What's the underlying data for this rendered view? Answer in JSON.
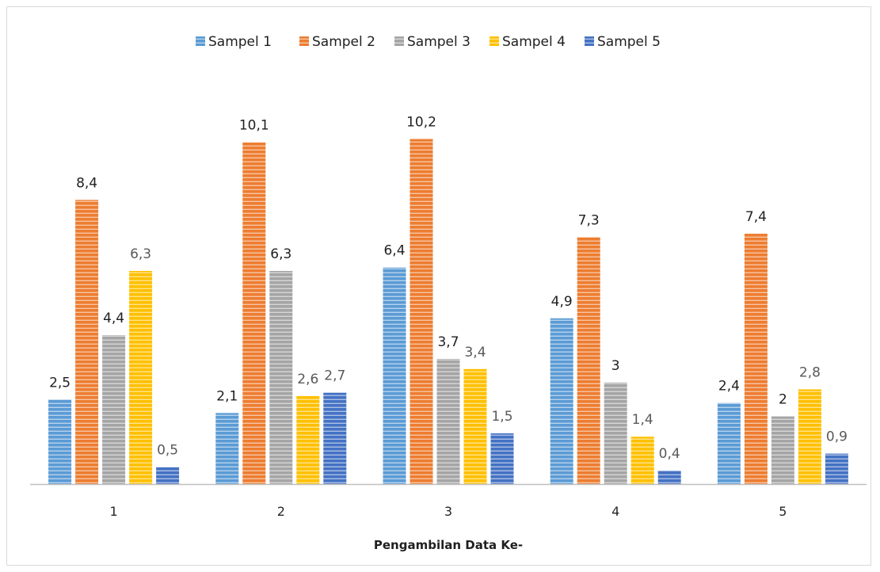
{
  "chart_data": {
    "type": "bar",
    "title": "",
    "xlabel": "Pengambilan Data Ke-",
    "ylabel": "",
    "categories": [
      "1",
      "2",
      "3",
      "4",
      "5"
    ],
    "ylim": [
      0,
      10.5
    ],
    "grid": false,
    "legend_position": "top",
    "series": [
      {
        "name": "Sampel 1",
        "color": "#5b9bd5",
        "values": [
          2.5,
          2.1,
          6.4,
          4.9,
          2.4
        ],
        "labels": [
          "2,5",
          "2,1",
          "6,4",
          "4,9",
          "2,4"
        ],
        "label_color": "#1f1f1f"
      },
      {
        "name": "Sampel 2",
        "color": "#ed7d31",
        "values": [
          8.4,
          10.1,
          10.2,
          7.3,
          7.4
        ],
        "labels": [
          "8,4",
          "10,1",
          "10,2",
          "7,3",
          "7,4"
        ],
        "label_color": "#1f1f1f"
      },
      {
        "name": "Sampel 3",
        "color": "#a5a5a5",
        "values": [
          4.4,
          6.3,
          3.7,
          3,
          2
        ],
        "labels": [
          "4,4",
          "6,3",
          "3,7",
          "3",
          "2"
        ],
        "label_color": "#1f1f1f"
      },
      {
        "name": "Sampel 4",
        "color": "#ffc000",
        "values": [
          6.3,
          2.6,
          3.4,
          1.4,
          2.8
        ],
        "labels": [
          "6,3",
          "2,6",
          "3,4",
          "1,4",
          "2,8"
        ],
        "label_color": "#595959"
      },
      {
        "name": "Sampel 5",
        "color": "#4472c4",
        "values": [
          0.5,
          2.7,
          1.5,
          0.4,
          0.9
        ],
        "labels": [
          "0,5",
          "2,7",
          "1,5",
          "0,4",
          "0,9"
        ],
        "label_color": "#595959"
      }
    ]
  }
}
